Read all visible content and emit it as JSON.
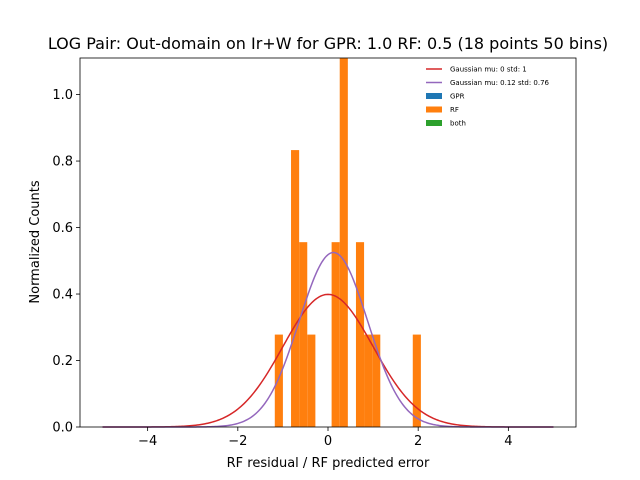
{
  "chart_data": {
    "type": "bar",
    "title": "LOG Pair: Out-domain on Ir+W for GPR: 1.0 RF: 0.5 (18 points 50 bins)",
    "xlabel": "RF residual / RF predicted error",
    "ylabel": "Normalized Counts",
    "xlim": [
      -5.5,
      5.5
    ],
    "ylim": [
      0,
      1.11
    ],
    "xticks": [
      -4,
      -2,
      0,
      2,
      4
    ],
    "yticks": [
      0.0,
      0.2,
      0.4,
      0.6,
      0.8,
      1.0
    ],
    "xtick_labels": [
      "−4",
      "−2",
      "0",
      "2",
      "4"
    ],
    "ytick_labels": [
      "0.0",
      "0.2",
      "0.4",
      "0.6",
      "0.8",
      "1.0"
    ],
    "bin_width": 0.18,
    "histogram": {
      "name": "RF",
      "color": "#ff7f0e",
      "bars": [
        {
          "x_left": -1.18,
          "height": 0.278
        },
        {
          "x_left": -0.82,
          "height": 0.833
        },
        {
          "x_left": -0.64,
          "height": 0.556
        },
        {
          "x_left": -0.46,
          "height": 0.278
        },
        {
          "x_left": 0.08,
          "height": 0.556
        },
        {
          "x_left": 0.26,
          "height": 1.111
        },
        {
          "x_left": 0.62,
          "height": 0.556
        },
        {
          "x_left": 0.8,
          "height": 0.278
        },
        {
          "x_left": 0.98,
          "height": 0.278
        },
        {
          "x_left": 1.88,
          "height": 0.278
        }
      ]
    },
    "curves": [
      {
        "name": "Gaussian mu: 0 std: 1",
        "mu": 0,
        "std": 1,
        "color": "#d62728",
        "x_range": [
          -5,
          5
        ]
      },
      {
        "name": "Gaussian mu: 0.12 std: 0.76",
        "mu": 0.12,
        "std": 0.76,
        "color": "#9467bd",
        "x_range": [
          -5,
          5
        ]
      }
    ],
    "legend": {
      "placement": "upper-right",
      "entries": [
        {
          "label": "Gaussian mu: 0 std: 1",
          "kind": "line",
          "color": "#d62728"
        },
        {
          "label": "Gaussian mu: 0.12 std: 0.76",
          "kind": "line",
          "color": "#9467bd"
        },
        {
          "label": "GPR",
          "kind": "patch",
          "color": "#1f77b4"
        },
        {
          "label": "RF",
          "kind": "patch",
          "color": "#ff7f0e"
        },
        {
          "label": "both",
          "kind": "patch",
          "color": "#2ca02c"
        }
      ]
    },
    "grid": false
  }
}
